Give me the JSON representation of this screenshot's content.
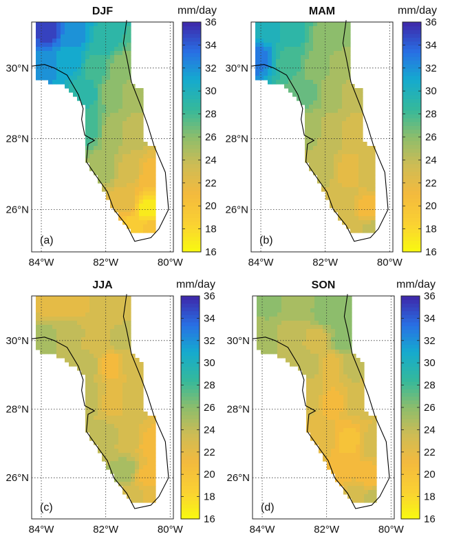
{
  "figure": {
    "colorbar_unit": "mm/day"
  },
  "chart_data": [
    {
      "type": "heatmap",
      "panel": "(a)",
      "title": "DJF",
      "xticks": [
        "84°W",
        "82°W",
        "80°W"
      ],
      "yticks": [
        "30°N",
        "28°N",
        "26°N"
      ],
      "xlim": [
        -84.3,
        -79.9
      ],
      "ylim": [
        24.8,
        31.3
      ],
      "colorbar": {
        "label": "mm/day",
        "min": 16,
        "max": 36,
        "ticks": [
          16,
          18,
          20,
          22,
          24,
          26,
          28,
          30,
          32,
          34,
          36
        ]
      },
      "grid": "dotted",
      "estimated_values": [
        {
          "lon": -83.8,
          "lat": 31.1,
          "value": 35
        },
        {
          "lon": -83.0,
          "lat": 31.0,
          "value": 32
        },
        {
          "lon": -82.0,
          "lat": 30.8,
          "value": 29
        },
        {
          "lon": -83.9,
          "lat": 30.1,
          "value": 32
        },
        {
          "lon": -83.1,
          "lat": 30.2,
          "value": 31
        },
        {
          "lon": -82.3,
          "lat": 30.0,
          "value": 28
        },
        {
          "lon": -81.5,
          "lat": 30.0,
          "value": 26
        },
        {
          "lon": -82.6,
          "lat": 29.3,
          "value": 29
        },
        {
          "lon": -81.8,
          "lat": 29.3,
          "value": 26
        },
        {
          "lon": -81.2,
          "lat": 29.3,
          "value": 25
        },
        {
          "lon": -82.5,
          "lat": 28.3,
          "value": 28
        },
        {
          "lon": -81.8,
          "lat": 28.2,
          "value": 25
        },
        {
          "lon": -81.1,
          "lat": 28.2,
          "value": 24
        },
        {
          "lon": -82.0,
          "lat": 27.2,
          "value": 25
        },
        {
          "lon": -81.3,
          "lat": 27.1,
          "value": 23
        },
        {
          "lon": -80.6,
          "lat": 27.0,
          "value": 21
        },
        {
          "lon": -81.4,
          "lat": 26.2,
          "value": 22
        },
        {
          "lon": -80.7,
          "lat": 26.0,
          "value": 17
        },
        {
          "lon": -81.1,
          "lat": 25.5,
          "value": 19
        },
        {
          "lon": -80.6,
          "lat": 25.4,
          "value": 20
        }
      ]
    },
    {
      "type": "heatmap",
      "panel": "(b)",
      "title": "MAM",
      "xticks": [
        "84°W",
        "82°W",
        "80°W"
      ],
      "yticks": [
        "30°N",
        "28°N",
        "26°N"
      ],
      "xlim": [
        -84.3,
        -79.9
      ],
      "ylim": [
        24.8,
        31.3
      ],
      "colorbar": {
        "label": "mm/day",
        "min": 16,
        "max": 36,
        "ticks": [
          16,
          18,
          20,
          22,
          24,
          26,
          28,
          30,
          32,
          34,
          36
        ]
      },
      "grid": "dotted",
      "estimated_values": [
        {
          "lon": -83.8,
          "lat": 31.1,
          "value": 30
        },
        {
          "lon": -83.0,
          "lat": 31.0,
          "value": 29
        },
        {
          "lon": -82.0,
          "lat": 30.8,
          "value": 26
        },
        {
          "lon": -84.1,
          "lat": 30.3,
          "value": 33
        },
        {
          "lon": -83.1,
          "lat": 30.2,
          "value": 28
        },
        {
          "lon": -82.3,
          "lat": 30.0,
          "value": 26
        },
        {
          "lon": -81.5,
          "lat": 30.0,
          "value": 25
        },
        {
          "lon": -82.6,
          "lat": 29.3,
          "value": 27
        },
        {
          "lon": -81.8,
          "lat": 29.3,
          "value": 25
        },
        {
          "lon": -81.2,
          "lat": 29.3,
          "value": 24
        },
        {
          "lon": -82.5,
          "lat": 28.3,
          "value": 25
        },
        {
          "lon": -81.8,
          "lat": 28.2,
          "value": 24
        },
        {
          "lon": -81.1,
          "lat": 28.2,
          "value": 23
        },
        {
          "lon": -82.0,
          "lat": 27.2,
          "value": 24
        },
        {
          "lon": -81.3,
          "lat": 27.1,
          "value": 22
        },
        {
          "lon": -80.6,
          "lat": 27.0,
          "value": 23
        },
        {
          "lon": -81.4,
          "lat": 26.2,
          "value": 23
        },
        {
          "lon": -80.7,
          "lat": 26.0,
          "value": 21
        },
        {
          "lon": -81.1,
          "lat": 25.5,
          "value": 23
        },
        {
          "lon": -80.6,
          "lat": 25.4,
          "value": 24
        }
      ]
    },
    {
      "type": "heatmap",
      "panel": "(c)",
      "title": "JJA",
      "xticks": [
        "84°W",
        "82°W",
        "80°W"
      ],
      "yticks": [
        "30°N",
        "28°N",
        "26°N"
      ],
      "xlim": [
        -84.3,
        -79.9
      ],
      "ylim": [
        24.8,
        31.3
      ],
      "colorbar": {
        "label": "mm/day",
        "min": 16,
        "max": 36,
        "ticks": [
          16,
          18,
          20,
          22,
          24,
          26,
          28,
          30,
          32,
          34,
          36
        ]
      },
      "grid": "dotted",
      "estimated_values": [
        {
          "lon": -83.8,
          "lat": 31.1,
          "value": 22
        },
        {
          "lon": -83.0,
          "lat": 31.0,
          "value": 22
        },
        {
          "lon": -82.0,
          "lat": 30.8,
          "value": 23
        },
        {
          "lon": -83.9,
          "lat": 30.1,
          "value": 25
        },
        {
          "lon": -83.1,
          "lat": 30.2,
          "value": 24
        },
        {
          "lon": -82.3,
          "lat": 30.0,
          "value": 23
        },
        {
          "lon": -81.5,
          "lat": 30.0,
          "value": 24
        },
        {
          "lon": -82.6,
          "lat": 29.3,
          "value": 24
        },
        {
          "lon": -81.8,
          "lat": 29.3,
          "value": 21
        },
        {
          "lon": -81.2,
          "lat": 29.3,
          "value": 23
        },
        {
          "lon": -82.5,
          "lat": 28.3,
          "value": 24
        },
        {
          "lon": -81.8,
          "lat": 28.2,
          "value": 22
        },
        {
          "lon": -81.1,
          "lat": 28.2,
          "value": 23
        },
        {
          "lon": -82.0,
          "lat": 27.2,
          "value": 24
        },
        {
          "lon": -81.3,
          "lat": 27.1,
          "value": 23
        },
        {
          "lon": -80.6,
          "lat": 27.0,
          "value": 21
        },
        {
          "lon": -81.4,
          "lat": 26.2,
          "value": 25
        },
        {
          "lon": -80.7,
          "lat": 26.0,
          "value": 21
        },
        {
          "lon": -81.1,
          "lat": 25.5,
          "value": 23
        },
        {
          "lon": -80.6,
          "lat": 25.4,
          "value": 22
        }
      ]
    },
    {
      "type": "heatmap",
      "panel": "(d)",
      "title": "SON",
      "xticks": [
        "84°W",
        "82°W",
        "80°W"
      ],
      "yticks": [
        "30°N",
        "28°N",
        "26°N"
      ],
      "xlim": [
        -84.3,
        -79.9
      ],
      "ylim": [
        24.8,
        31.3
      ],
      "colorbar": {
        "label": "mm/day",
        "min": 16,
        "max": 36,
        "ticks": [
          16,
          18,
          20,
          22,
          24,
          26,
          28,
          30,
          32,
          34,
          36
        ]
      },
      "grid": "dotted",
      "estimated_values": [
        {
          "lon": -83.8,
          "lat": 31.1,
          "value": 26
        },
        {
          "lon": -83.0,
          "lat": 31.0,
          "value": 25
        },
        {
          "lon": -82.0,
          "lat": 30.8,
          "value": 26
        },
        {
          "lon": -83.9,
          "lat": 30.1,
          "value": 25
        },
        {
          "lon": -83.1,
          "lat": 30.2,
          "value": 24
        },
        {
          "lon": -82.3,
          "lat": 30.0,
          "value": 23
        },
        {
          "lon": -81.5,
          "lat": 30.0,
          "value": 26
        },
        {
          "lon": -82.6,
          "lat": 29.3,
          "value": 24
        },
        {
          "lon": -81.8,
          "lat": 29.3,
          "value": 22
        },
        {
          "lon": -81.2,
          "lat": 29.3,
          "value": 24
        },
        {
          "lon": -82.5,
          "lat": 28.3,
          "value": 23
        },
        {
          "lon": -81.8,
          "lat": 28.2,
          "value": 21
        },
        {
          "lon": -81.1,
          "lat": 28.2,
          "value": 23
        },
        {
          "lon": -82.0,
          "lat": 27.2,
          "value": 22
        },
        {
          "lon": -81.3,
          "lat": 27.1,
          "value": 20
        },
        {
          "lon": -80.6,
          "lat": 27.0,
          "value": 23
        },
        {
          "lon": -81.4,
          "lat": 26.2,
          "value": 21
        },
        {
          "lon": -80.7,
          "lat": 26.0,
          "value": 21
        },
        {
          "lon": -81.1,
          "lat": 25.5,
          "value": 23
        },
        {
          "lon": -80.6,
          "lat": 25.4,
          "value": 24
        }
      ]
    }
  ]
}
